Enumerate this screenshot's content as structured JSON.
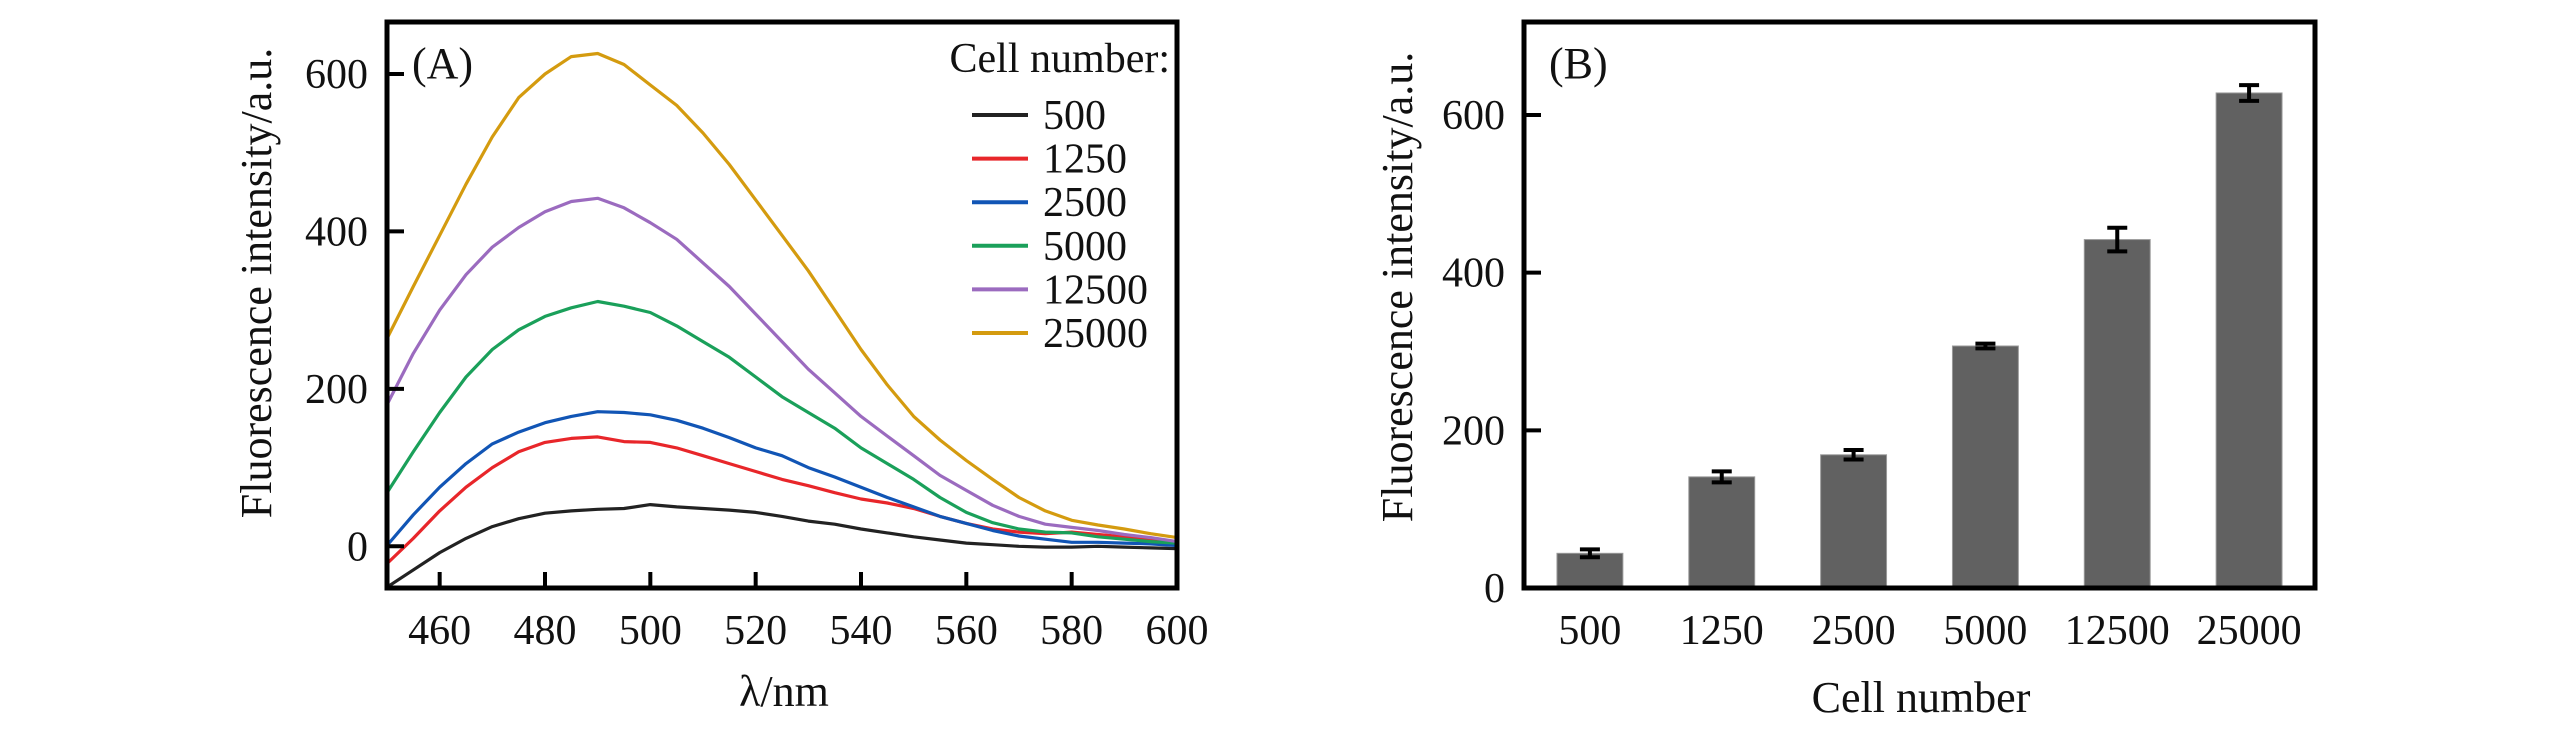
{
  "colors": {
    "series": [
      "#222222",
      "#e8262a",
      "#1155b5",
      "#1aa05a",
      "#9b6bbf",
      "#d49b0f"
    ],
    "bar": "#616161",
    "axis": "#000000"
  },
  "chart_data": [
    {
      "panel": "A",
      "type": "line",
      "panel_label": "(A)",
      "title": "",
      "xlabel": "λ/nm",
      "ylabel": "Fluorescence intensity/a.u.",
      "xlim": [
        450,
        600
      ],
      "ylim": [
        -53,
        666
      ],
      "xticks": [
        460,
        480,
        500,
        520,
        540,
        560,
        580,
        600
      ],
      "xtick_labels": [
        "460",
        "480",
        "500",
        "520",
        "540",
        "560",
        "580",
        "600"
      ],
      "yticks": [
        0,
        200,
        400,
        600
      ],
      "ytick_labels": [
        "0",
        "200",
        "400",
        "600"
      ],
      "grid": false,
      "legend": {
        "title": "Cell number:",
        "placement": "top-right"
      },
      "x": [
        450,
        455,
        460,
        465,
        470,
        475,
        480,
        485,
        490,
        495,
        500,
        505,
        510,
        515,
        520,
        525,
        530,
        535,
        540,
        545,
        550,
        555,
        560,
        565,
        570,
        575,
        580,
        585,
        590,
        595,
        600
      ],
      "series": [
        {
          "name": "500",
          "values": [
            -52,
            -30,
            -8,
            10,
            25,
            35,
            42,
            45,
            47,
            48,
            53,
            50,
            48,
            46,
            43,
            38,
            32,
            28,
            22,
            17,
            12,
            8,
            4,
            2,
            0,
            -1,
            -1,
            0,
            -1,
            -2,
            -3
          ]
        },
        {
          "name": "1250",
          "values": [
            -22,
            10,
            45,
            75,
            100,
            120,
            132,
            137,
            139,
            133,
            132,
            125,
            115,
            105,
            95,
            85,
            77,
            68,
            60,
            55,
            48,
            38,
            29,
            22,
            18,
            16,
            18,
            15,
            12,
            8,
            5
          ]
        },
        {
          "name": "2500",
          "values": [
            1,
            40,
            75,
            105,
            130,
            145,
            157,
            165,
            171,
            170,
            167,
            160,
            150,
            138,
            125,
            115,
            100,
            88,
            75,
            62,
            50,
            38,
            29,
            20,
            13,
            9,
            5,
            5,
            4,
            3,
            1
          ]
        },
        {
          "name": "5000",
          "values": [
            68,
            120,
            170,
            215,
            250,
            275,
            292,
            303,
            311,
            305,
            297,
            280,
            260,
            240,
            215,
            190,
            170,
            150,
            125,
            105,
            85,
            62,
            43,
            30,
            22,
            18,
            17,
            12,
            9,
            6,
            4
          ]
        },
        {
          "name": "12500",
          "values": [
            180,
            245,
            300,
            345,
            380,
            405,
            425,
            438,
            442,
            430,
            411,
            390,
            360,
            330,
            295,
            260,
            225,
            195,
            165,
            140,
            115,
            90,
            71,
            52,
            38,
            28,
            24,
            20,
            15,
            11,
            6
          ]
        },
        {
          "name": "25000",
          "values": [
            264,
            330,
            395,
            460,
            520,
            570,
            600,
            622,
            626,
            612,
            586,
            560,
            525,
            485,
            440,
            395,
            350,
            300,
            250,
            205,
            165,
            135,
            109,
            85,
            62,
            45,
            33,
            27,
            22,
            16,
            11
          ]
        }
      ]
    },
    {
      "panel": "B",
      "type": "bar",
      "panel_label": "(B)",
      "title": "",
      "xlabel": "Cell number",
      "ylabel": "Fluorescence intensity/a.u.",
      "categories": [
        "500",
        "1250",
        "2500",
        "5000",
        "12500",
        "25000"
      ],
      "values": [
        44,
        141,
        169,
        307,
        442,
        628
      ],
      "errors": [
        5,
        7,
        6,
        3,
        15,
        10
      ],
      "ylim": [
        0,
        718
      ],
      "yticks": [
        0,
        200,
        400,
        600
      ],
      "ytick_labels": [
        "0",
        "200",
        "400",
        "600"
      ],
      "grid": false
    }
  ]
}
